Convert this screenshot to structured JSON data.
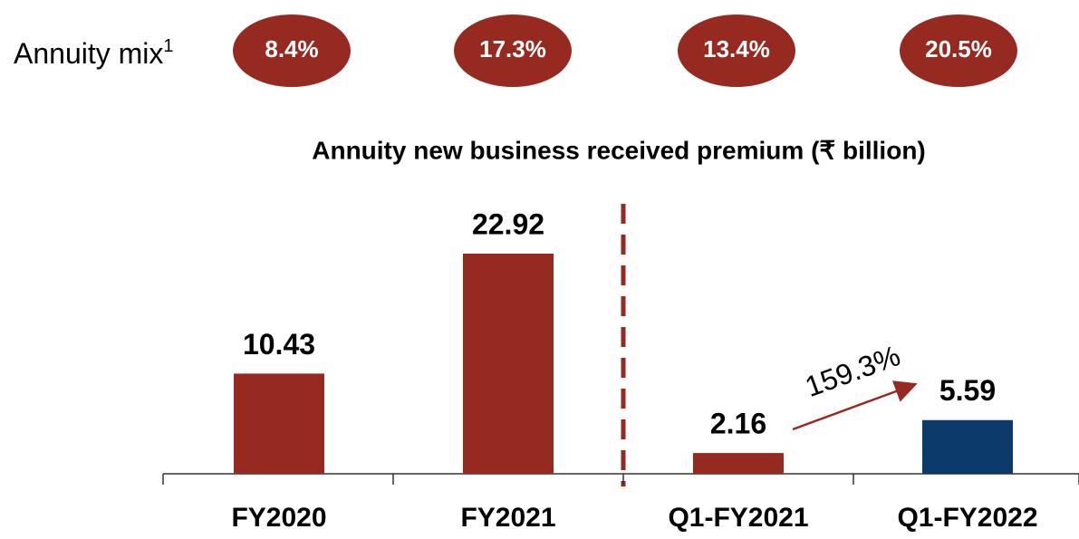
{
  "annuity_mix": {
    "label": "Annuity mix",
    "footnote": "1",
    "values": [
      8.4,
      17.3,
      13.4,
      20.5
    ],
    "value_labels": [
      "8.4%",
      "17.3%",
      "13.4%",
      "20.5%"
    ],
    "color": "#962a20"
  },
  "chart_data": {
    "type": "bar",
    "title": "Annuity new business received premium (₹ billion)",
    "categories": [
      "FY2020",
      "FY2021",
      "Q1-FY2021",
      "Q1-FY2022"
    ],
    "values": [
      10.43,
      22.92,
      2.16,
      5.59
    ],
    "colors": [
      "#962a20",
      "#962a20",
      "#962a20",
      "#0b3a6b"
    ],
    "annotation": {
      "value": 159.3,
      "label": "159.3%"
    }
  }
}
